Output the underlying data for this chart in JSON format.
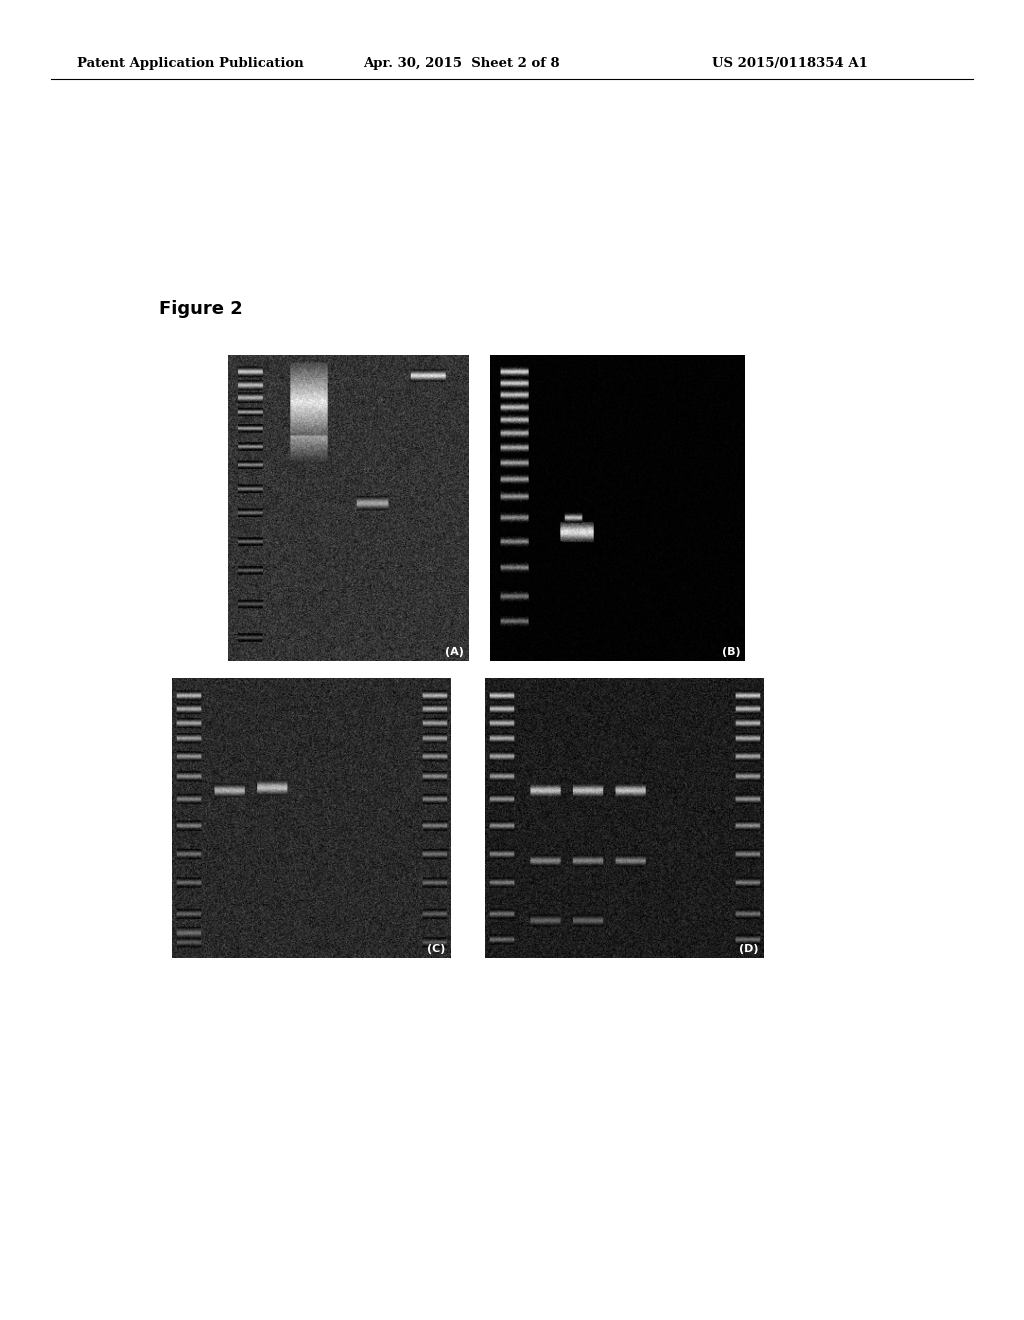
{
  "page_title_left": "Patent Application Publication",
  "page_title_mid": "Apr. 30, 2015  Sheet 2 of 8",
  "page_title_right": "US 2015/0118354 A1",
  "figure_label": "Figure 2",
  "background_color": "#ffffff",
  "header_fontsize": 9.5,
  "figure_label_fontsize": 13,
  "panel_A": {
    "label": "(A)",
    "lanes": 4,
    "bg_level": 55,
    "noise": 18
  },
  "panel_B": {
    "label": "(B)",
    "lanes": 4,
    "bg_level": 3,
    "noise": 4
  },
  "panel_C": {
    "label": "(C)",
    "lanes": 6,
    "bg_level": 45,
    "noise": 16
  },
  "panel_D": {
    "label": "(D)",
    "lanes": 6,
    "bg_level": 30,
    "noise": 14
  }
}
